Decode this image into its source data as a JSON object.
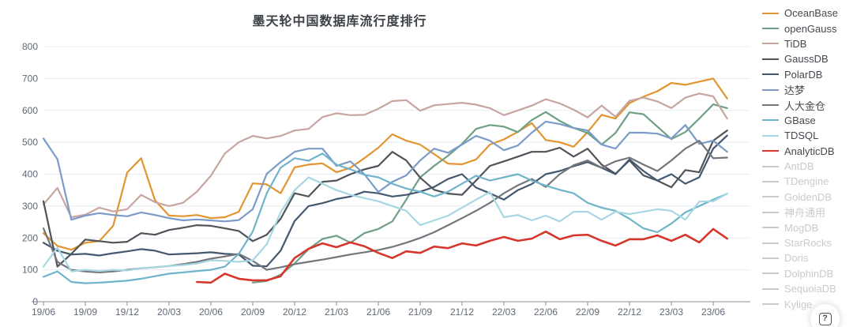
{
  "chart": {
    "title": "墨天轮中国数据库流行度排行",
    "help_button": {
      "icon": "boxed-question-mark",
      "label": "?"
    }
  },
  "chart_data": {
    "type": "line",
    "title": "墨天轮中国数据库流行度排行",
    "x_tick_labels": [
      "19/06",
      "19/09",
      "19/12",
      "20/03",
      "20/06",
      "20/09",
      "20/12",
      "21/03",
      "21/06",
      "21/09",
      "21/12",
      "22/03",
      "22/06",
      "22/09",
      "22/12",
      "23/03",
      "23/06"
    ],
    "x_points_total": 50,
    "x_tick_every": 3,
    "ylim": [
      0,
      800
    ],
    "y_ticks": [
      0,
      100,
      200,
      300,
      400,
      500,
      600,
      700,
      800
    ],
    "grid": true,
    "legend_position": "right",
    "colors": {
      "grid": "#e4ebf3",
      "axis": "#8a9099",
      "tick_label": "#5f6975",
      "legend_disabled": "#c8cacd"
    },
    "series": [
      {
        "name": "OceanBase",
        "color": "#e2952f",
        "width": 2.2,
        "values": [
          215,
          175,
          163,
          185,
          190,
          238,
          405,
          450,
          318,
          270,
          268,
          272,
          262,
          265,
          282,
          371,
          368,
          340,
          421,
          430,
          434,
          406,
          420,
          450,
          483,
          525,
          505,
          493,
          463,
          433,
          431,
          446,
          493,
          509,
          533,
          560,
          507,
          500,
          486,
          532,
          586,
          574,
          623,
          643,
          660,
          686,
          680,
          690,
          700,
          637
        ]
      },
      {
        "name": "openGauss",
        "color": "#6fa083",
        "width": 2.2,
        "values": [
          null,
          null,
          null,
          null,
          null,
          null,
          null,
          null,
          null,
          null,
          null,
          null,
          null,
          null,
          null,
          60,
          65,
          85,
          120,
          165,
          197,
          207,
          185,
          215,
          228,
          252,
          320,
          390,
          426,
          458,
          495,
          542,
          554,
          549,
          532,
          570,
          595,
          567,
          545,
          529,
          493,
          529,
          594,
          588,
          549,
          510,
          532,
          574,
          619,
          607
        ]
      },
      {
        "name": "TiDB",
        "color": "#c7a5a0",
        "width": 2.2,
        "values": [
          305,
          357,
          265,
          273,
          295,
          283,
          290,
          335,
          312,
          300,
          310,
          345,
          395,
          465,
          500,
          520,
          512,
          520,
          537,
          542,
          579,
          591,
          585,
          586,
          605,
          629,
          632,
          599,
          616,
          620,
          624,
          618,
          607,
          585,
          600,
          615,
          635,
          622,
          602,
          578,
          615,
          580,
          630,
          640,
          628,
          607,
          640,
          653,
          644,
          574
        ]
      },
      {
        "name": "GaussDB",
        "color": "#4f545a",
        "width": 2.2,
        "values": [
          315,
          110,
          150,
          195,
          190,
          185,
          188,
          215,
          210,
          225,
          232,
          240,
          238,
          230,
          222,
          190,
          210,
          260,
          340,
          330,
          376,
          380,
          400,
          415,
          426,
          470,
          443,
          389,
          351,
          339,
          335,
          380,
          426,
          440,
          455,
          470,
          470,
          483,
          455,
          480,
          430,
          401,
          443,
          396,
          380,
          359,
          413,
          406,
          505,
          537
        ]
      },
      {
        "name": "PolarDB",
        "color": "#44586f",
        "width": 2.2,
        "values": [
          185,
          160,
          148,
          150,
          145,
          152,
          158,
          165,
          160,
          148,
          150,
          152,
          155,
          150,
          148,
          113,
          111,
          160,
          253,
          300,
          309,
          322,
          330,
          345,
          340,
          330,
          335,
          345,
          360,
          385,
          400,
          358,
          340,
          320,
          350,
          369,
          400,
          410,
          425,
          438,
          420,
          400,
          446,
          410,
          380,
          400,
          370,
          390,
          480,
          521
        ]
      },
      {
        "name": "达梦",
        "color": "#7b9bc8",
        "width": 2.2,
        "values": [
          512,
          447,
          257,
          270,
          278,
          272,
          268,
          280,
          272,
          262,
          255,
          258,
          255,
          252,
          256,
          290,
          401,
          438,
          470,
          480,
          480,
          426,
          440,
          400,
          344,
          376,
          396,
          443,
          480,
          467,
          493,
          520,
          505,
          475,
          490,
          530,
          565,
          557,
          545,
          537,
          493,
          480,
          530,
          530,
          527,
          512,
          554,
          495,
          505,
          470
        ]
      },
      {
        "name": "人大金仓",
        "color": "#73767b",
        "width": 2.2,
        "values": [
          230,
          125,
          100,
          95,
          92,
          95,
          100,
          105,
          108,
          112,
          118,
          125,
          135,
          142,
          150,
          128,
          100,
          108,
          118,
          125,
          132,
          140,
          148,
          155,
          162,
          172,
          185,
          200,
          218,
          240,
          262,
          285,
          310,
          340,
          365,
          385,
          360,
          400,
          428,
          443,
          420,
          440,
          452,
          430,
          410,
          443,
          480,
          505,
          450,
          452
        ]
      },
      {
        "name": "GBase",
        "color": "#6fb4cb",
        "width": 2.2,
        "values": [
          78,
          95,
          62,
          58,
          60,
          63,
          66,
          72,
          80,
          88,
          92,
          96,
          100,
          110,
          150,
          220,
          340,
          420,
          450,
          442,
          465,
          430,
          415,
          398,
          390,
          370,
          355,
          345,
          330,
          345,
          370,
          395,
          380,
          390,
          400,
          380,
          364,
          351,
          340,
          310,
          295,
          285,
          260,
          230,
          218,
          245,
          280,
          300,
          320,
          339
        ]
      },
      {
        "name": "TDSQL",
        "color": "#a7d8e2",
        "width": 2.2,
        "values": [
          110,
          170,
          95,
          100,
          96,
          100,
          98,
          105,
          108,
          112,
          115,
          120,
          130,
          128,
          125,
          130,
          180,
          280,
          350,
          390,
          370,
          350,
          335,
          325,
          315,
          300,
          285,
          240,
          255,
          270,
          295,
          320,
          344,
          265,
          272,
          255,
          270,
          252,
          282,
          282,
          257,
          282,
          275,
          282,
          290,
          285,
          257,
          314,
          315,
          339
        ]
      },
      {
        "name": "AnalyticDB",
        "color": "#d6362b",
        "width": 2.6,
        "values": [
          null,
          null,
          null,
          null,
          null,
          null,
          null,
          null,
          null,
          null,
          null,
          62,
          60,
          88,
          72,
          67,
          67,
          80,
          137,
          166,
          183,
          171,
          186,
          174,
          153,
          137,
          158,
          153,
          173,
          168,
          183,
          176,
          191,
          203,
          191,
          198,
          220,
          196,
          208,
          210,
          191,
          176,
          196,
          196,
          208,
          191,
          210,
          186,
          228,
          198
        ]
      }
    ],
    "legend_disabled_items": [
      "AntDB",
      "TDengine",
      "GoldenDB",
      "神舟通用",
      "MogDB",
      "StarRocks",
      "Doris",
      "DolphinDB",
      "SequoiaDB",
      "Kylige"
    ]
  }
}
